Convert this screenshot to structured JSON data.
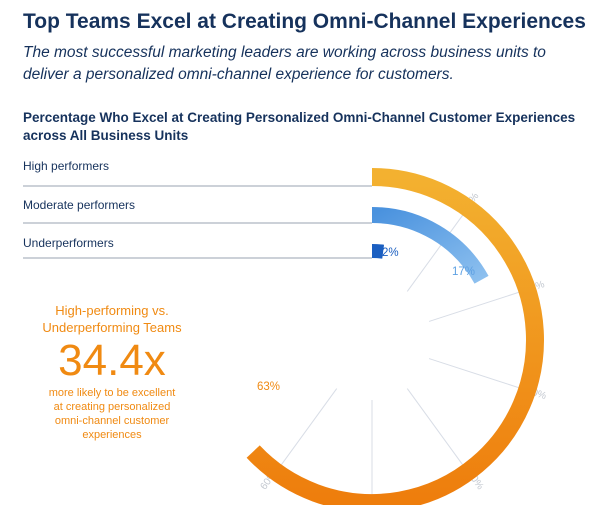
{
  "header": {
    "title": "Top Teams Excel at Creating Omni-Channel Experiences",
    "subtitle": "The most successful marketing leaders are working across business units to deliver a personalized omni-channel experience for customers."
  },
  "callout": {
    "heading_line1": "High-performing vs.",
    "heading_line2": "Underperforming Teams",
    "number": "34.4x",
    "desc_line1": "more likely to be excellent",
    "desc_line2": "at creating personalized",
    "desc_line3": "omni-channel customer",
    "desc_line4": "experiences"
  },
  "chart_data": {
    "type": "radial-bar",
    "title": "Percentage Who Excel at Creating Personalized Omni-Channel Customer Experiences across All Business Units",
    "series": [
      {
        "name": "High performers",
        "value": 63,
        "label": "63%",
        "color": "#f08a12"
      },
      {
        "name": "Moderate performers",
        "value": 17,
        "label": "17%",
        "color": "#5da0e2"
      },
      {
        "name": "Underperformers",
        "value": 2,
        "label": "2%",
        "color": "#1b5fc1"
      }
    ],
    "axis_ticks": [
      "10%",
      "20%",
      "30%",
      "40%",
      "50%",
      "60%"
    ],
    "range": [
      0,
      100
    ]
  }
}
